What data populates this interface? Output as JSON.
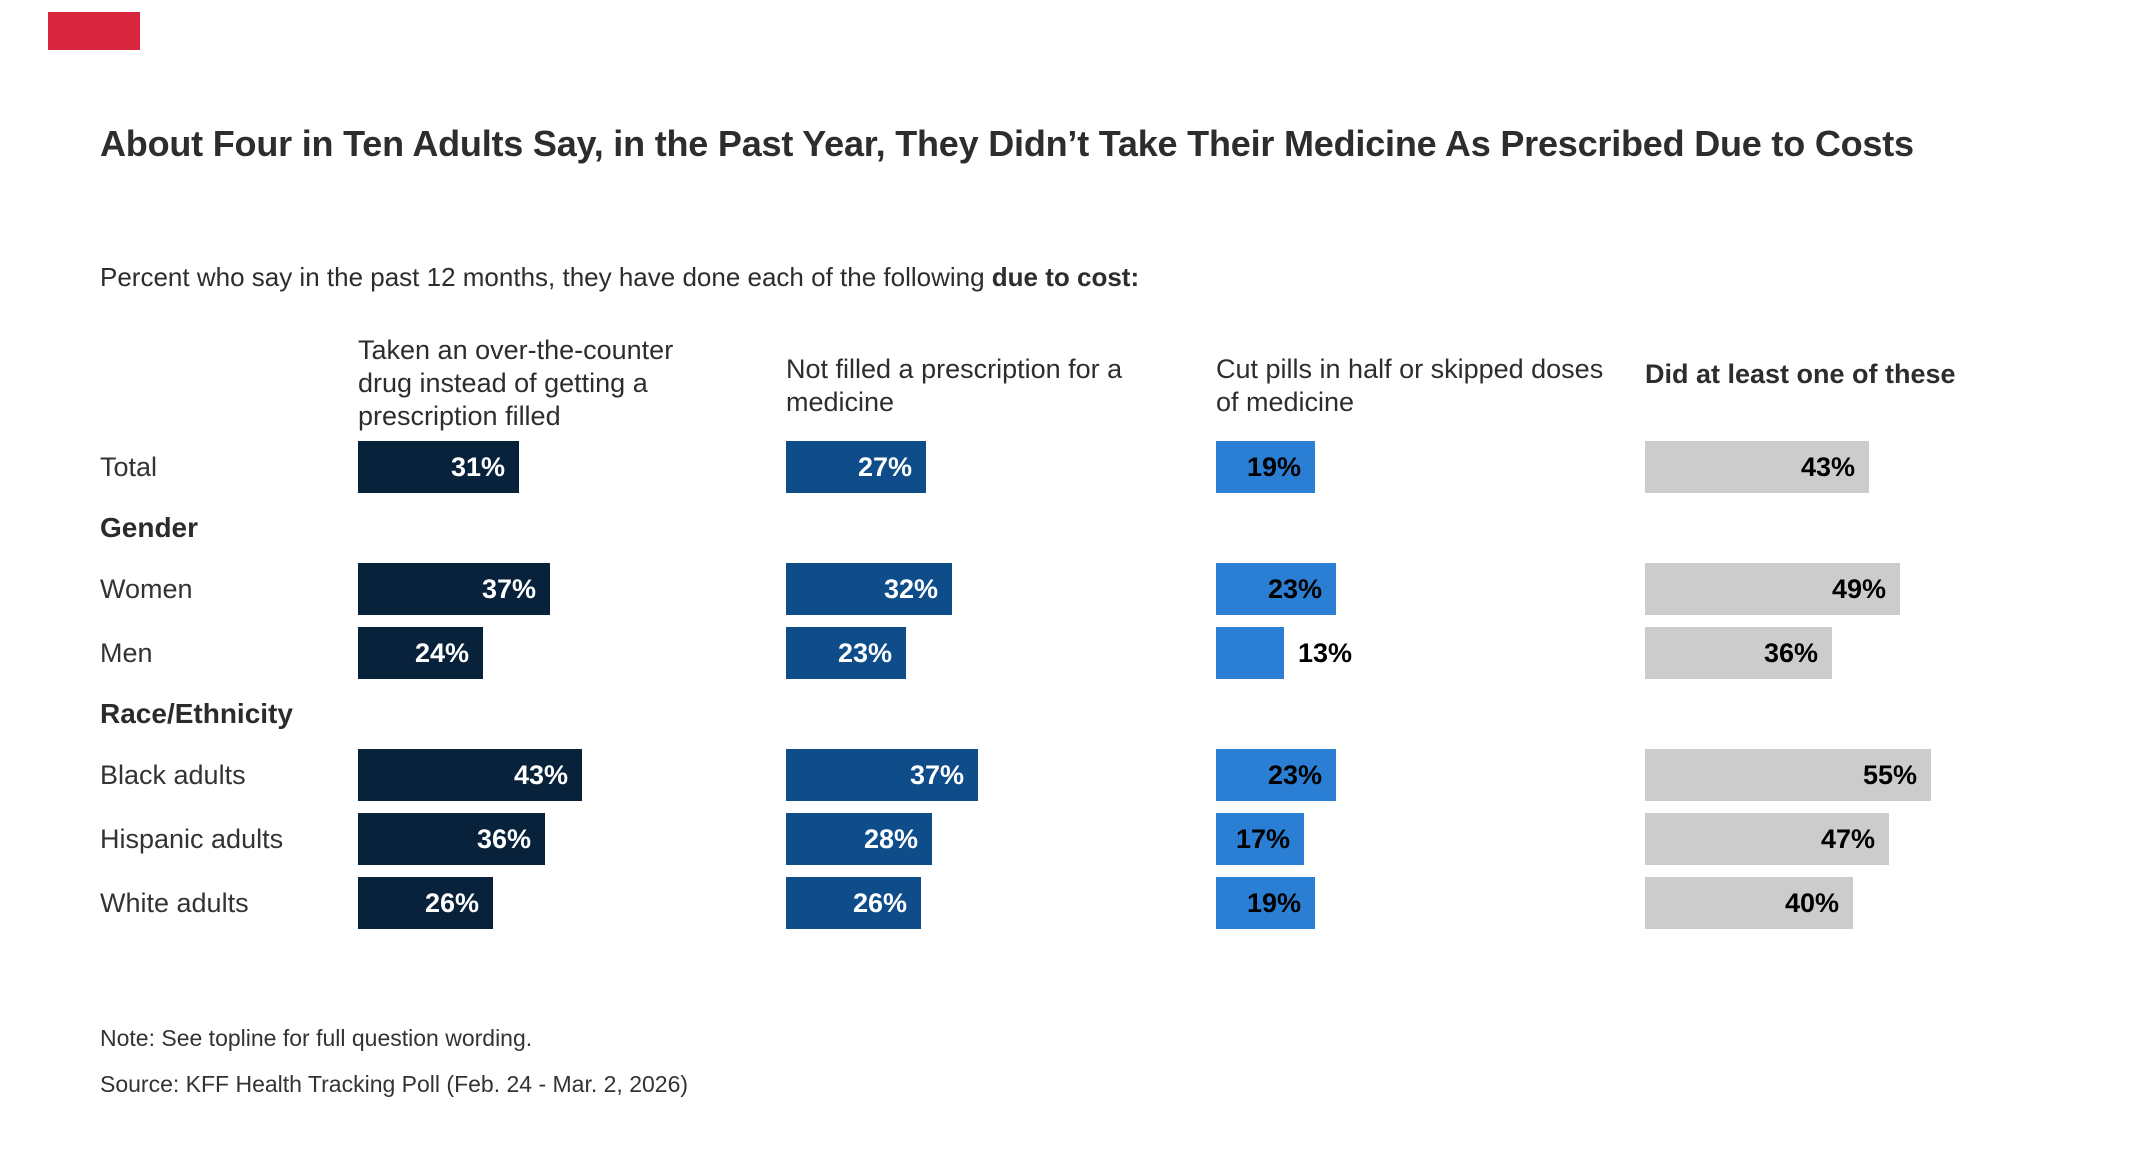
{
  "brand": {
    "accent_color": "#d7263d"
  },
  "title": "About Four in Ten Adults Say, in the Past Year, They Didn’t Take Their Medicine As Prescribed Due to Costs",
  "subtitle": {
    "prefix": "Percent who say in the past 12 months, they have done each of the following ",
    "bold": "due to cost:"
  },
  "columns": [
    {
      "label": "Taken an over-the-counter drug instead of getting a prescription filled",
      "color": "#08223c",
      "value_color": "#ffffff",
      "bold_header": false
    },
    {
      "label": "Not filled a prescription for a medicine",
      "color": "#0e4d8a",
      "value_color": "#ffffff",
      "bold_header": false
    },
    {
      "label": "Cut pills in half or skipped doses of medicine",
      "color": "#2a7fd4",
      "value_color": "#000000",
      "bold_header": false
    },
    {
      "label": "Did at least one of these",
      "color": "#cccccc",
      "value_color": "#000000",
      "bold_header": true
    }
  ],
  "rows": [
    {
      "type": "data",
      "label": "Total",
      "values": [
        31,
        27,
        19,
        43
      ]
    },
    {
      "type": "section",
      "label": "Gender"
    },
    {
      "type": "data",
      "label": "Women",
      "values": [
        37,
        32,
        23,
        49
      ]
    },
    {
      "type": "data",
      "label": "Men",
      "values": [
        24,
        23,
        13,
        36
      ],
      "outside_label_cols": [
        2
      ]
    },
    {
      "type": "section",
      "label": "Race/Ethnicity"
    },
    {
      "type": "data",
      "label": "Black adults",
      "values": [
        43,
        37,
        23,
        55
      ]
    },
    {
      "type": "data",
      "label": "Hispanic adults",
      "values": [
        36,
        28,
        17,
        47
      ]
    },
    {
      "type": "data",
      "label": "White adults",
      "values": [
        26,
        26,
        19,
        40
      ]
    }
  ],
  "footer": {
    "note": "Note: See topline for full question wording.",
    "source": "Source: KFF Health Tracking Poll (Feb. 24 - Mar. 2, 2026)"
  },
  "chart_data": {
    "type": "bar",
    "orientation": "horizontal",
    "title": "About Four in Ten Adults Say, in the Past Year, They Didn’t Take Their Medicine As Prescribed Due to Costs",
    "subtitle": "Percent who say in the past 12 months, they have done each of the following due to cost:",
    "unit": "%",
    "categories": [
      "Total",
      "Women",
      "Men",
      "Black adults",
      "Hispanic adults",
      "White adults"
    ],
    "category_groups": {
      "Gender": [
        "Women",
        "Men"
      ],
      "Race/Ethnicity": [
        "Black adults",
        "Hispanic adults",
        "White adults"
      ]
    },
    "series": [
      {
        "name": "Taken an over-the-counter drug instead of getting a prescription filled",
        "color": "#08223c",
        "values": [
          31,
          37,
          24,
          43,
          36,
          26
        ]
      },
      {
        "name": "Not filled a prescription for a medicine",
        "color": "#0e4d8a",
        "values": [
          27,
          32,
          23,
          37,
          28,
          26
        ]
      },
      {
        "name": "Cut pills in half or skipped doses of medicine",
        "color": "#2a7fd4",
        "values": [
          19,
          23,
          13,
          23,
          17,
          19
        ]
      },
      {
        "name": "Did at least one of these",
        "color": "#cccccc",
        "values": [
          43,
          49,
          36,
          55,
          47,
          40
        ]
      }
    ],
    "xlim": [
      0,
      60
    ],
    "grid": false,
    "legend_position": "column-headers",
    "value_labels": true,
    "note": "Note: See topline for full question wording.",
    "source": "Source: KFF Health Tracking Poll (Feb. 24 - Mar. 2, 2026)"
  }
}
